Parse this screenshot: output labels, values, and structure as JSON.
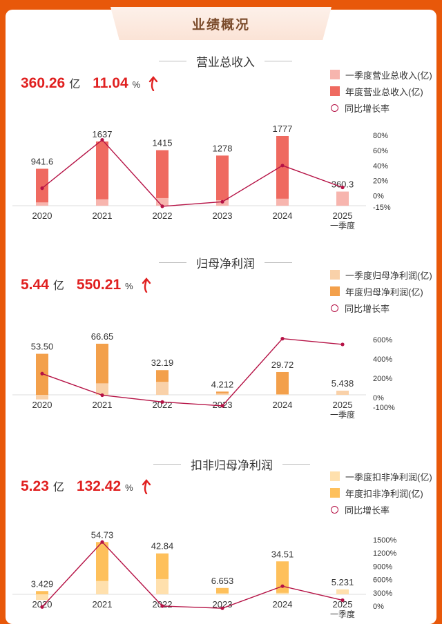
{
  "header": {
    "title": "业绩概况"
  },
  "colors": {
    "background": "#e8580a",
    "rev_annual": "#ef6a60",
    "rev_q1": "#f7b5ae",
    "np_annual": "#f3a04b",
    "np_q1": "#f9d1a9",
    "dnp_annual": "#fec05b",
    "dnp_q1": "#ffe0ad",
    "yoy_line": "#b51245"
  },
  "sections": [
    {
      "title": "营业总收入",
      "headline": {
        "value": "360.26",
        "unit": "亿",
        "pct": "11.04",
        "pct_sign": "%"
      },
      "legend": [
        "一季度营业总收入(亿)",
        "年度营业总收入(亿)",
        "同比增长率"
      ]
    },
    {
      "title": "归母净利润",
      "headline": {
        "value": "5.44",
        "unit": "亿",
        "pct": "550.21",
        "pct_sign": "%"
      },
      "legend": [
        "一季度归母净利润(亿)",
        "年度归母净利润(亿)",
        "同比增长率"
      ]
    },
    {
      "title": "扣非归母净利润",
      "headline": {
        "value": "5.23",
        "unit": "亿",
        "pct": "132.42",
        "pct_sign": "%"
      },
      "legend": [
        "一季度扣非净利润(亿)",
        "年度扣非净利润(亿)",
        "同比增长率"
      ]
    }
  ],
  "chart_data": [
    {
      "type": "bar",
      "title": "营业总收入",
      "categories": [
        "2020",
        "2021",
        "2022",
        "2023",
        "2024",
        "2025\n一季度"
      ],
      "series": [
        {
          "name": "年度营业总收入(亿)",
          "values": [
            941.6,
            1637,
            1415,
            1278,
            1777,
            null
          ]
        },
        {
          "name": "一季度营业总收入(亿)",
          "values": [
            85,
            165,
            195,
            140,
            180,
            360.3
          ]
        },
        {
          "name": "同比增长率",
          "values": [
            10,
            74,
            -14,
            -8,
            40,
            11.04
          ],
          "axis": "right"
        }
      ],
      "value_labels": [
        "941.6",
        "1637",
        "1415",
        "1278",
        "1777",
        "360.3"
      ],
      "ylim": [
        0,
        1900
      ],
      "y2lim": [
        -15,
        80
      ],
      "y2ticks": [
        80,
        60,
        40,
        20,
        0,
        -15
      ],
      "y2tick_labels": [
        "80%",
        "60%",
        "40%",
        "20%",
        "0%",
        "-15%"
      ]
    },
    {
      "type": "bar",
      "title": "归母净利润",
      "categories": [
        "2020",
        "2021",
        "2022",
        "2023",
        "2024",
        "2025\n一季度"
      ],
      "series": [
        {
          "name": "年度归母净利润(亿)",
          "values": [
            53.5,
            66.65,
            32.19,
            4.212,
            29.72,
            null
          ]
        },
        {
          "name": "一季度归母净利润(亿)",
          "values": [
            -6,
            15,
            17,
            2,
            0.8,
            5.438
          ]
        },
        {
          "name": "同比增长率",
          "values": [
            248,
            25,
            -45,
            -85,
            610,
            550.21
          ],
          "axis": "right"
        }
      ],
      "value_labels": [
        "53.50",
        "66.65",
        "32.19",
        "4.212",
        "29.72",
        "5.438"
      ],
      "ylim": [
        -10,
        72
      ],
      "y2lim": [
        -100,
        600
      ],
      "y2ticks": [
        600,
        400,
        200,
        0,
        -100
      ],
      "y2tick_labels": [
        "600%",
        "400%",
        "200%",
        "0%",
        "-100%"
      ]
    },
    {
      "type": "bar",
      "title": "扣非归母净利润",
      "categories": [
        "2020",
        "2021",
        "2022",
        "2023",
        "2024",
        "2025\n一季度"
      ],
      "series": [
        {
          "name": "年度扣非净利润(亿)",
          "values": [
            3.429,
            54.73,
            42.84,
            6.653,
            34.51,
            null
          ]
        },
        {
          "name": "一季度扣非净利润(亿)",
          "values": [
            -6,
            14,
            16,
            1.2,
            1.6,
            5.231
          ]
        },
        {
          "name": "同比增长率",
          "values": [
            -20,
            1450,
            0,
            -50,
            450,
            132.42
          ],
          "axis": "right"
        }
      ],
      "value_labels": [
        "3.429",
        "54.73",
        "42.84",
        "6.653",
        "34.51",
        "5.231"
      ],
      "ylim": [
        -10,
        60
      ],
      "y2lim": [
        0,
        1500
      ],
      "y2ticks": [
        1500,
        1200,
        900,
        600,
        300,
        0
      ],
      "y2tick_labels": [
        "1500%",
        "1200%",
        "900%",
        "600%",
        "300%",
        "0%"
      ]
    }
  ]
}
